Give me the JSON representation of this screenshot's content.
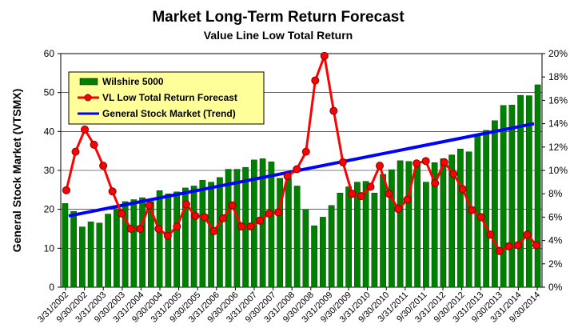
{
  "chart_data": {
    "type": "bar+line",
    "title": "Market Long-Term Return Forecast",
    "subtitle": "Value Line Low Total Return",
    "ylabel": "General Stock Market (VTSMX)",
    "y_left": {
      "min": 0,
      "max": 60,
      "ticks": [
        "0",
        "10",
        "20",
        "30",
        "40",
        "50",
        "60"
      ]
    },
    "y_right": {
      "min": 0,
      "max": 20,
      "ticks": [
        "0%",
        "2%",
        "4%",
        "6%",
        "8%",
        "10%",
        "12%",
        "14%",
        "16%",
        "18%",
        "20%"
      ]
    },
    "x_tick_labels": [
      "3/31/2002",
      "9/30/2002",
      "3/31/2003",
      "9/30/2003",
      "3/31/2004",
      "9/30/2004",
      "3/31/2005",
      "9/30/2005",
      "3/31/2006",
      "9/30/2006",
      "3/31/2007",
      "9/30/2007",
      "3/31/2008",
      "9/30/2008",
      "3/31/2009",
      "9/30/2009",
      "3/31/2010",
      "9/30/2010",
      "3/31/2011",
      "9/30/2011",
      "3/31/2012",
      "9/30/2012",
      "3/31/2013",
      "9/30/2013",
      "3/31/2014",
      "9/30/2014"
    ],
    "legend": {
      "position": "top-left",
      "entries": [
        "Wilshire 5000",
        "VL Low Total Return Forecast",
        "General Stock Market (Trend)"
      ]
    },
    "colors": {
      "bars": "#008000",
      "forecast": "#ff0000",
      "trend": "#0000ff",
      "legend_bg": "#ffff99",
      "plot_bg": "#ffffff"
    },
    "series": [
      {
        "name": "Wilshire 5000",
        "type": "bar",
        "axis": "left",
        "values": [
          21.5,
          19.5,
          15.5,
          16.8,
          16.5,
          18.8,
          20.2,
          22.0,
          22.5,
          23.0,
          22.0,
          24.8,
          24.0,
          24.5,
          25.5,
          26.0,
          27.5,
          27.0,
          28.2,
          30.3,
          30.3,
          30.8,
          32.7,
          33.0,
          32.2,
          28.0,
          28.0,
          26.0,
          20.0,
          15.8,
          18.0,
          21.0,
          24.2,
          25.8,
          27.0,
          27.2,
          24.2,
          29.0,
          30.2,
          32.5,
          32.3,
          32.2,
          27.0,
          32.0,
          33.0,
          34.0,
          35.5,
          34.8,
          39.2,
          40.3,
          42.8,
          46.7,
          46.8,
          49.3,
          49.2,
          52.0
        ]
      },
      {
        "name": "VL Low Total Return Forecast",
        "type": "line",
        "axis": "right",
        "values": [
          8.3,
          11.6,
          13.5,
          12.2,
          10.4,
          8.2,
          6.3,
          5.0,
          5.0,
          7.0,
          5.0,
          4.4,
          5.2,
          7.1,
          6.1,
          6.0,
          4.8,
          5.9,
          7.0,
          5.2,
          5.2,
          5.7,
          6.3,
          6.4,
          9.5,
          10.1,
          11.6,
          17.7,
          19.8,
          15.1,
          10.7,
          8.0,
          7.8,
          8.6,
          10.4,
          8.0,
          6.7,
          7.5,
          10.6,
          10.8,
          8.9,
          10.7,
          9.7,
          8.4,
          6.6,
          6.0,
          4.5,
          3.1,
          3.5,
          3.6,
          4.5,
          3.6
        ]
      },
      {
        "name": "General Stock Market (Trend)",
        "type": "line",
        "axis": "right",
        "values": [
          6.1,
          14.0
        ]
      }
    ]
  }
}
